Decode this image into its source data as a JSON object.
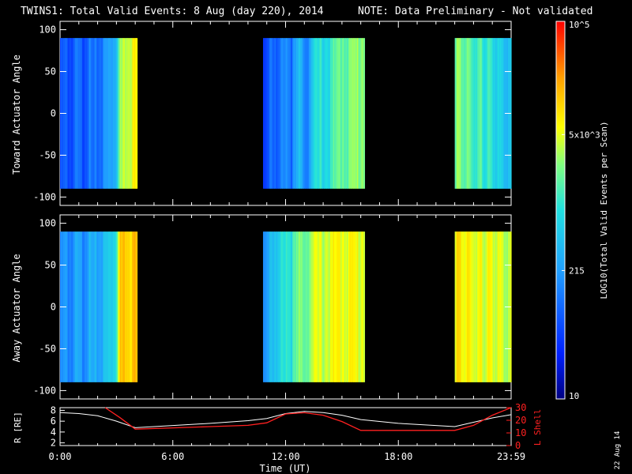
{
  "title": {
    "main": "TWINS1: Total Valid Events:  8 Aug (day 220), 2014",
    "note": "NOTE: Data Preliminary - Not validated",
    "note_color": "#ff2020"
  },
  "side_date": "22 Aug 14",
  "chart_data": [
    {
      "type": "heatmap",
      "ylabel": "Toward Actuator Angle",
      "ylim": [
        -110,
        110
      ],
      "yticks": [
        -100,
        -50,
        0,
        50,
        100
      ],
      "xlim_hours": [
        0,
        24
      ],
      "data_angle_range": [
        -90,
        90
      ],
      "segments": [
        {
          "start_hour": 0.0,
          "end_hour": 4.1,
          "level_profile": [
            0.18,
            0.22,
            0.2,
            0.25,
            0.2,
            0.28,
            0.22,
            0.26,
            0.3,
            0.35,
            0.4,
            0.62,
            0.7,
            0.72,
            0.72
          ]
        },
        {
          "start_hour": 10.8,
          "end_hour": 16.2,
          "level_profile": [
            0.15,
            0.3,
            0.18,
            0.35,
            0.25,
            0.4,
            0.3,
            0.45,
            0.5,
            0.5,
            0.55,
            0.6,
            0.6,
            0.62,
            0.65
          ]
        },
        {
          "start_hour": 21.0,
          "end_hour": 24.0,
          "level_profile": [
            0.62,
            0.6,
            0.58,
            0.55,
            0.55,
            0.52,
            0.5,
            0.45,
            0.42,
            0.4
          ]
        }
      ]
    },
    {
      "type": "heatmap",
      "ylabel": "Away Actuator Angle",
      "ylim": [
        -110,
        110
      ],
      "yticks": [
        -100,
        -50,
        0,
        50,
        100
      ],
      "xlim_hours": [
        0,
        24
      ],
      "data_angle_range": [
        -90,
        90
      ],
      "segments": [
        {
          "start_hour": 0.0,
          "end_hour": 4.1,
          "level_profile": [
            0.28,
            0.32,
            0.3,
            0.35,
            0.3,
            0.38,
            0.34,
            0.36,
            0.4,
            0.45,
            0.5,
            0.78,
            0.82,
            0.8,
            0.8
          ]
        },
        {
          "start_hour": 10.8,
          "end_hour": 16.2,
          "level_profile": [
            0.3,
            0.45,
            0.4,
            0.55,
            0.5,
            0.6,
            0.62,
            0.66,
            0.68,
            0.7,
            0.7,
            0.72,
            0.72,
            0.7,
            0.72
          ]
        },
        {
          "start_hour": 21.0,
          "end_hour": 24.0,
          "level_profile": [
            0.75,
            0.74,
            0.72,
            0.72,
            0.7,
            0.7,
            0.7,
            0.68,
            0.66,
            0.65
          ]
        }
      ]
    },
    {
      "type": "line",
      "ylabel_left": "R [RE]",
      "ylabel_right": "L Shell",
      "ylim_left": [
        1.5,
        8.5
      ],
      "yticks_left": [
        2,
        4,
        6,
        8
      ],
      "ylim_right": [
        0,
        30
      ],
      "yticks_right": [
        0,
        10,
        20,
        30
      ],
      "xlabel": "Time (UT)",
      "xticks": [
        {
          "hour": 0,
          "label": "0:00"
        },
        {
          "hour": 6,
          "label": "6:00"
        },
        {
          "hour": 12,
          "label": "12:00"
        },
        {
          "hour": 18,
          "label": "18:00"
        },
        {
          "hour": 24,
          "label": "23:59"
        }
      ],
      "series": [
        {
          "axis": "left",
          "color": "#ffffff",
          "x": [
            0,
            1,
            2,
            3,
            4,
            6,
            8,
            10,
            11,
            12,
            13,
            14,
            15,
            16,
            18,
            20,
            21,
            22,
            23,
            24
          ],
          "y": [
            7.6,
            7.4,
            7.0,
            6.0,
            4.8,
            5.2,
            5.6,
            6.1,
            6.5,
            7.4,
            7.8,
            7.6,
            7.1,
            6.3,
            5.6,
            5.2,
            5.0,
            5.8,
            6.6,
            7.2
          ]
        },
        {
          "axis": "right",
          "color": "#ff2020",
          "x": [
            2.4,
            3.2,
            4.0,
            6,
            8,
            10,
            11,
            12,
            13,
            14,
            15,
            16,
            18,
            20,
            21,
            22,
            23,
            24
          ],
          "y": [
            30,
            22,
            13,
            14,
            15,
            16,
            18,
            25,
            26,
            24,
            19,
            12,
            12,
            12,
            12,
            16,
            24,
            34
          ]
        }
      ]
    }
  ],
  "colorbar": {
    "label": "LOG10(Total Valid Events per Scan)",
    "ticks": [
      {
        "label": "10",
        "fraction": 0.0
      },
      {
        "label": "215",
        "fraction": 0.34
      },
      {
        "label": "5x10^3",
        "fraction": 0.7
      },
      {
        "label": "10^5",
        "fraction": 1.0
      }
    ]
  }
}
